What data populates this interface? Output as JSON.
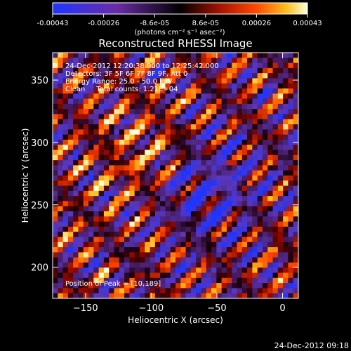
{
  "chart_data": {
    "type": "heatmap",
    "title": "Reconstructed RHESSI Image",
    "xlabel": "Heliocentric X (arcsec)",
    "ylabel": "Heliocentric Y (arcsec)",
    "xlim": [
      -175,
      12
    ],
    "ylim": [
      175,
      372
    ],
    "xticks": [
      -150,
      -100,
      -50,
      0
    ],
    "yticks": [
      200,
      250,
      300,
      350
    ],
    "colormap": "red-temperature",
    "colorbar": {
      "range": [
        -0.00043,
        0.00043
      ],
      "ticks": [
        "-0.00043",
        "-0.00026",
        "-8.6e-05",
        "8.6e-05",
        "0.00026",
        "0.00043"
      ],
      "unit": "(photons cm⁻² s⁻¹ asec⁻²)"
    },
    "annotations": [
      "24-Dec-2012 12:20:38.000 to 12:25:42.000",
      "Detectors: 3F 5F 6F 7F 8F 9F, Att 0",
      "Energy Range: 25.0 - 50.0 keV",
      "Clean     Total counts: 1.21E+04"
    ],
    "peak_label": "Position of Peak = [10,189]",
    "peak": [
      10,
      189
    ],
    "grid": false
  },
  "footer": {
    "timestamp": "24-Dec-2012 09:18"
  },
  "colors": {
    "background": "#000000",
    "text": "#ffffff",
    "negative": "#1f35ff",
    "positive": "#ffeb40"
  }
}
